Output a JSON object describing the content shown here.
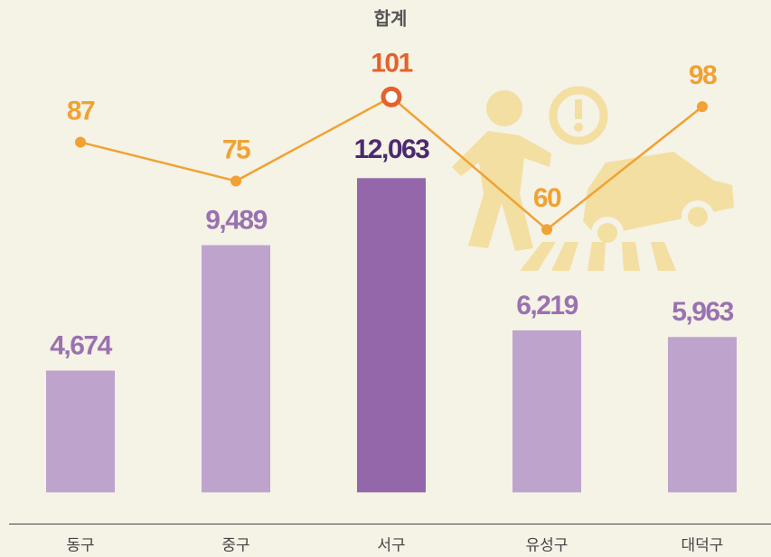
{
  "chart_data": {
    "type": "bar_line",
    "title": "합계",
    "categories": [
      "동구",
      "중구",
      "서구",
      "유성구",
      "대덕구"
    ],
    "ylim": [
      -1200,
      18900
    ],
    "y2lim": [
      -31,
      131
    ],
    "series": [
      {
        "type": "bar",
        "values": [
          4674,
          9489,
          12063,
          6219,
          5963
        ],
        "value_labels": [
          "4,674",
          "9,489",
          "12,063",
          "6,219",
          "5,963"
        ],
        "colors": [
          "#bea3cd",
          "#bea3cd",
          "#9467aa",
          "#bea3cd",
          "#bea3cd"
        ],
        "label_colors": [
          "#9a72b0",
          "#9a72b0",
          "#4b2a70",
          "#9a72b0",
          "#9a72b0"
        ]
      },
      {
        "type": "line",
        "axis": "y2",
        "color": "#f0a232",
        "values": [
          87,
          75,
          101,
          60,
          98
        ],
        "marker_colors": [
          "#f0a232",
          "#f0a232",
          "#e2632b",
          "#f0a232",
          "#f0a232"
        ]
      }
    ]
  }
}
